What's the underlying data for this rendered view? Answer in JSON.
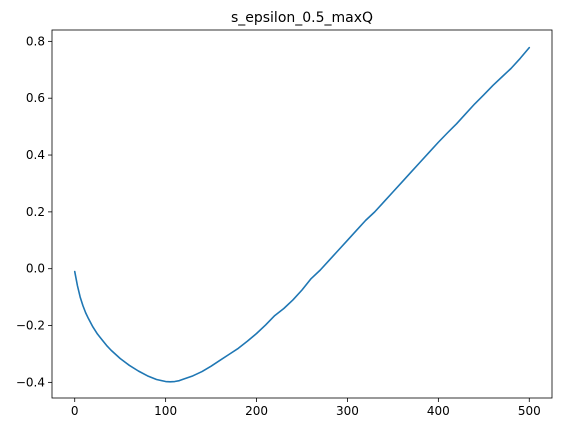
{
  "chart_data": {
    "type": "line",
    "title": "s_epsilon_0.5_maxQ",
    "xlabel": "",
    "ylabel": "",
    "xlim": [
      -25,
      525
    ],
    "ylim": [
      -0.455,
      0.84
    ],
    "xticks": [
      0,
      100,
      200,
      300,
      400,
      500
    ],
    "xtick_labels": [
      "0",
      "100",
      "200",
      "300",
      "400",
      "500"
    ],
    "yticks": [
      -0.4,
      -0.2,
      0.0,
      0.2,
      0.4,
      0.6,
      0.8
    ],
    "ytick_labels": [
      "−0.4",
      "−0.2",
      "0.0",
      "0.2",
      "0.4",
      "0.6",
      "0.8"
    ],
    "grid": false,
    "line_color": "#1f77b4",
    "series": [
      {
        "x": [
          0,
          3,
          6,
          9,
          12,
          15,
          20,
          25,
          30,
          35,
          40,
          50,
          60,
          70,
          80,
          90,
          100,
          105,
          110,
          115,
          120,
          130,
          140,
          150,
          160,
          170,
          180,
          190,
          200,
          210,
          220,
          230,
          240,
          250,
          260,
          270,
          280,
          290,
          300,
          310,
          320,
          330,
          340,
          350,
          360,
          370,
          380,
          390,
          400,
          410,
          420,
          430,
          440,
          450,
          460,
          470,
          480,
          490,
          500
        ],
        "y": [
          -0.01,
          -0.06,
          -0.1,
          -0.13,
          -0.155,
          -0.175,
          -0.205,
          -0.23,
          -0.25,
          -0.27,
          -0.287,
          -0.316,
          -0.34,
          -0.36,
          -0.377,
          -0.39,
          -0.397,
          -0.398,
          -0.397,
          -0.394,
          -0.388,
          -0.377,
          -0.362,
          -0.343,
          -0.322,
          -0.301,
          -0.28,
          -0.255,
          -0.228,
          -0.198,
          -0.165,
          -0.14,
          -0.11,
          -0.075,
          -0.035,
          -0.005,
          0.03,
          0.065,
          0.1,
          0.135,
          0.17,
          0.2,
          0.235,
          0.27,
          0.305,
          0.34,
          0.375,
          0.41,
          0.445,
          0.478,
          0.51,
          0.545,
          0.58,
          0.612,
          0.645,
          0.675,
          0.705,
          0.74,
          0.778
        ]
      }
    ]
  }
}
